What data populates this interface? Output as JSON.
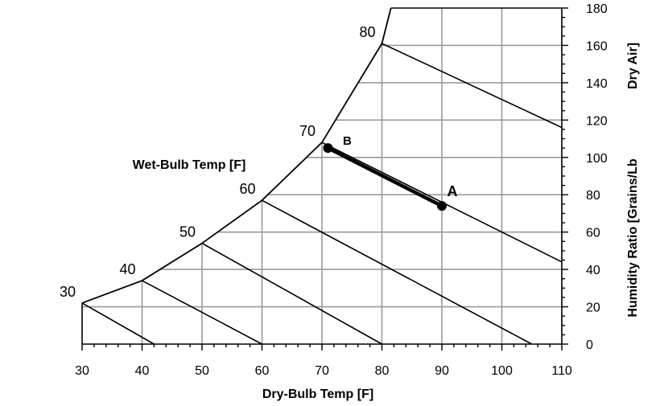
{
  "chart_data": {
    "type": "line",
    "xlabel": "Dry-Bulb Temp [F]",
    "ylabel": "Humidity Ratio [Grains/Lb Dry Air]",
    "ylabel_lines": [
      "Humidity Ratio [Grains/Lb",
      "Dry Air]"
    ],
    "wb_label": "Wet-Bulb Temp [F]",
    "xlim": [
      30,
      110
    ],
    "ylim": [
      0,
      180
    ],
    "x_ticks": [
      30,
      40,
      50,
      60,
      70,
      80,
      90,
      100,
      110
    ],
    "y_ticks": [
      0,
      20,
      40,
      60,
      80,
      100,
      120,
      140,
      160,
      180
    ],
    "grid": true,
    "saturation_curve": [
      [
        30,
        22
      ],
      [
        40,
        34
      ],
      [
        50,
        54
      ],
      [
        60,
        77
      ],
      [
        70,
        108
      ],
      [
        80,
        161
      ],
      [
        81.5,
        180
      ]
    ],
    "wet_bulb_lines": [
      {
        "label": "30",
        "start": [
          30,
          22
        ],
        "end": [
          42,
          0
        ]
      },
      {
        "label": "40",
        "start": [
          40,
          34
        ],
        "end": [
          60,
          0
        ]
      },
      {
        "label": "50",
        "start": [
          50,
          54
        ],
        "end": [
          80,
          0
        ]
      },
      {
        "label": "60",
        "start": [
          60,
          77
        ],
        "end": [
          105,
          0
        ]
      },
      {
        "label": "70",
        "start": [
          70,
          108
        ],
        "end": [
          110,
          44
        ]
      },
      {
        "label": "80",
        "start": [
          80,
          161
        ],
        "end": [
          110,
          116
        ]
      }
    ],
    "process": {
      "points": [
        {
          "label": "B",
          "x": 71,
          "y": 105
        },
        {
          "label": "A",
          "x": 90,
          "y": 74
        }
      ]
    }
  }
}
